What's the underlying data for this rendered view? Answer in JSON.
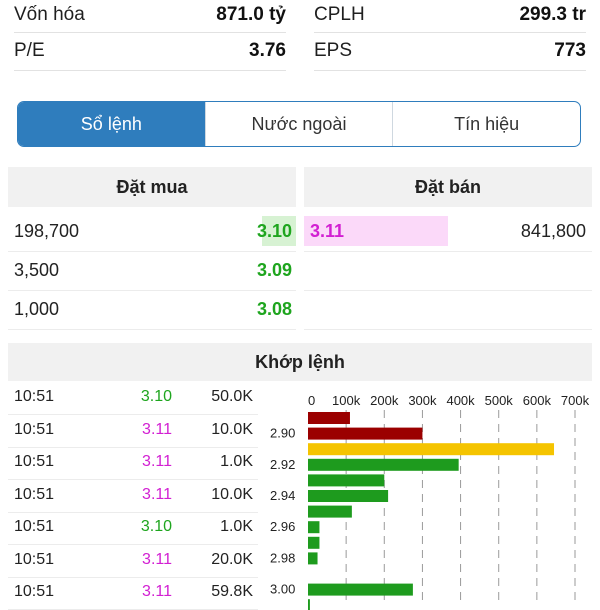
{
  "stats": [
    {
      "label": "Vốn hóa",
      "value": "871.0 tỷ"
    },
    {
      "label": "CPLH",
      "value": "299.3 tr"
    },
    {
      "label": "P/E",
      "value": "3.76"
    },
    {
      "label": "EPS",
      "value": "773"
    }
  ],
  "tabs": [
    "Sổ lệnh",
    "Nước ngoài",
    "Tín hiệu"
  ],
  "active_tab": "Sổ lệnh",
  "orderbook": {
    "buy_header": "Đặt mua",
    "sell_header": "Đặt bán",
    "buy": [
      {
        "volume": "198,700",
        "price": "3.10"
      },
      {
        "volume": "3,500",
        "price": "3.09"
      },
      {
        "volume": "1,000",
        "price": "3.08"
      }
    ],
    "sell": [
      {
        "price": "3.11",
        "volume": "841,800"
      }
    ]
  },
  "matched": {
    "title": "Khớp lệnh",
    "trades": [
      {
        "time": "10:51",
        "price": "3.10",
        "volume": "50.0K",
        "color": "green"
      },
      {
        "time": "10:51",
        "price": "3.11",
        "volume": "10.0K",
        "color": "magenta"
      },
      {
        "time": "10:51",
        "price": "3.11",
        "volume": "1.0K",
        "color": "magenta"
      },
      {
        "time": "10:51",
        "price": "3.11",
        "volume": "10.0K",
        "color": "magenta"
      },
      {
        "time": "10:51",
        "price": "3.10",
        "volume": "1.0K",
        "color": "green"
      },
      {
        "time": "10:51",
        "price": "3.11",
        "volume": "20.0K",
        "color": "magenta"
      },
      {
        "time": "10:51",
        "price": "3.11",
        "volume": "59.8K",
        "color": "magenta"
      }
    ]
  },
  "colors": {
    "accent": "#2f7dbd",
    "green": "#1ea51e",
    "magenta": "#d21fd2",
    "darkred": "#9b0000",
    "yellow": "#f5c400",
    "bar_green": "#1e9b1e"
  },
  "chart_data": {
    "type": "bar",
    "orientation": "horizontal",
    "x_ticks": [
      "0",
      "100k",
      "200k",
      "300k",
      "400k",
      "500k",
      "600k",
      "700k"
    ],
    "xlim": [
      0,
      700000
    ],
    "y_tick_labels": [
      "2.90",
      "2.92",
      "2.94",
      "2.96",
      "2.98",
      "3.00"
    ],
    "categories": [
      "2.89",
      "2.90",
      "2.91",
      "2.92",
      "2.93",
      "2.94",
      "2.95",
      "2.96",
      "2.97",
      "2.98",
      "2.99",
      "3.00",
      "3.01"
    ],
    "values": [
      110000,
      300000,
      645000,
      395000,
      200000,
      210000,
      115000,
      30000,
      30000,
      25000,
      0,
      275000,
      5000
    ],
    "bar_colors": [
      "darkred",
      "darkred",
      "yellow",
      "green",
      "green",
      "green",
      "green",
      "green",
      "green",
      "green",
      "green",
      "green",
      "green"
    ]
  }
}
